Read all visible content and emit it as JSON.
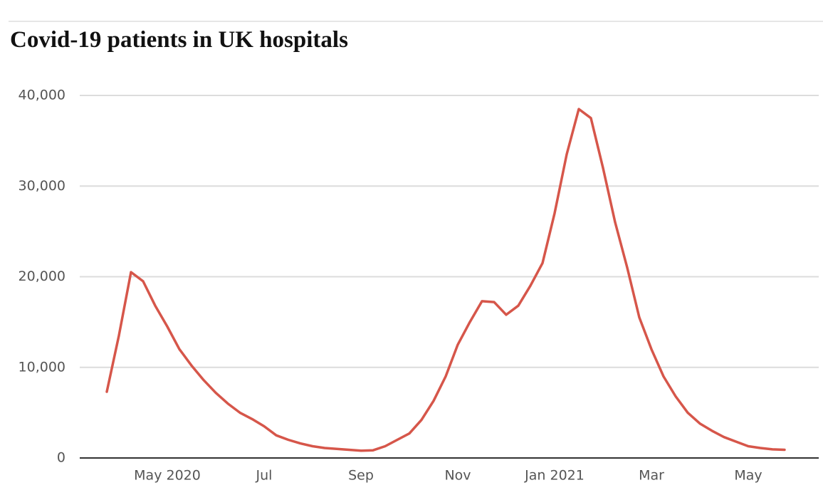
{
  "chart_data": {
    "type": "line",
    "title": "Covid-19 patients in UK hospitals",
    "categories": [
      null,
      null,
      null,
      null,
      null,
      "May 2020",
      null,
      null,
      null,
      null,
      null,
      null,
      null,
      "Jul",
      null,
      null,
      null,
      null,
      null,
      null,
      null,
      "Sep",
      null,
      null,
      null,
      null,
      null,
      null,
      null,
      "Nov",
      null,
      null,
      null,
      null,
      null,
      null,
      null,
      "Jan 2021",
      null,
      null,
      null,
      null,
      null,
      null,
      null,
      "Mar",
      null,
      null,
      null,
      null,
      null,
      null,
      null,
      "May",
      null,
      null,
      null
    ],
    "series": [
      {
        "name": "Covid-19 patients",
        "color": "#d6564a",
        "values": [
          7300,
          13500,
          20500,
          19500,
          16800,
          14500,
          12000,
          10200,
          8600,
          7200,
          6000,
          5000,
          4300,
          3500,
          2500,
          2000,
          1600,
          1300,
          1100,
          1000,
          900,
          800,
          850,
          1300,
          2000,
          2700,
          4200,
          6300,
          9000,
          12500,
          15000,
          17300,
          17200,
          15800,
          16800,
          19000,
          21500,
          27000,
          33500,
          38500,
          37500,
          32000,
          26000,
          21000,
          15500,
          12000,
          9000,
          6800,
          5000,
          3800,
          3000,
          2300,
          1800,
          1300,
          1100,
          950,
          900
        ]
      }
    ],
    "ylim": [
      0,
      40000
    ],
    "yticks": [
      0,
      {
        "value": 10000,
        "label": "10,000"
      },
      {
        "value": 20000,
        "label": "20,000"
      },
      {
        "value": 30000,
        "label": "30,000"
      },
      {
        "value": 40000,
        "label": "40,000"
      }
    ],
    "grid": true
  }
}
